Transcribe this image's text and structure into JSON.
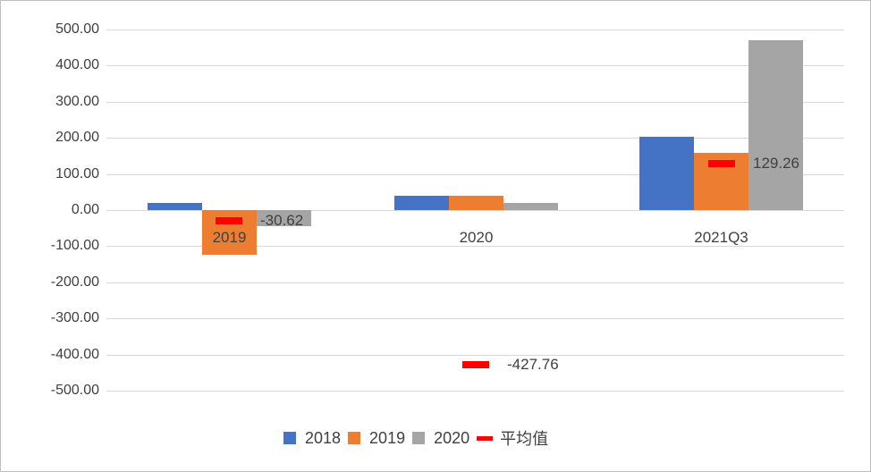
{
  "chart_data": {
    "type": "bar",
    "title": "",
    "xlabel": "",
    "ylabel": "",
    "ylim": [
      -500,
      500
    ],
    "yticks": [
      "500.00",
      "400.00",
      "300.00",
      "200.00",
      "100.00",
      "0.00",
      "-100.00",
      "-200.00",
      "-300.00",
      "-400.00",
      "-500.00"
    ],
    "grid": true,
    "legend_position": "bottom",
    "categories": [
      "2019",
      "2020",
      "2021Q3"
    ],
    "series": [
      {
        "name": "2018",
        "color": "#4472c4",
        "values": [
          20,
          40,
          202
        ]
      },
      {
        "name": "2019",
        "color": "#ed7d31",
        "values": [
          -123,
          40,
          158
        ]
      },
      {
        "name": "2020",
        "color": "#a5a5a5",
        "values": [
          -44,
          20,
          469
        ]
      }
    ],
    "average": {
      "name": "平均值",
      "color": "#ff0000",
      "points": [
        {
          "category": "2019",
          "value": -30.62,
          "label": "-30.62"
        },
        {
          "category": "2020",
          "value": -427.76,
          "label": "-427.76"
        },
        {
          "category": "2021Q3",
          "value": 129.26,
          "label": "129.26"
        }
      ]
    },
    "legend": [
      "2018",
      "2019",
      "2020",
      "平均值"
    ]
  }
}
